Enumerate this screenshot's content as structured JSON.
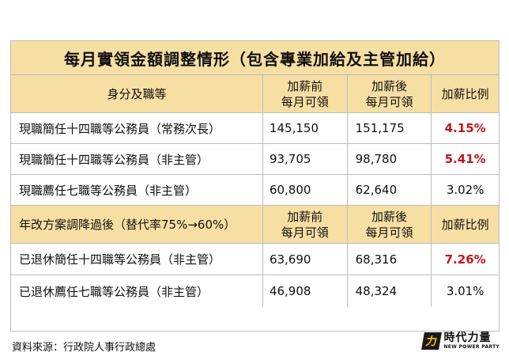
{
  "table": {
    "title": "每月實領金額調整情形（包含專業加給及主管加給）",
    "header1": {
      "identity": "身分及職等",
      "before_l1": "加薪前",
      "before_l2": "每月可領",
      "after_l1": "加薪後",
      "after_l2": "每月可領",
      "ratio": "加薪比例"
    },
    "rows_current": [
      {
        "identity": "現職簡任十四職等公務員（常務次長）",
        "before": "145,150",
        "after": "151,175",
        "ratio": "4.15%"
      },
      {
        "identity": "現職簡任十四職等公務員（非主管）",
        "before": "93,705",
        "after": "98,780",
        "ratio": "5.41%"
      },
      {
        "identity": "現職薦任七職等公務員（非主管）",
        "before": "60,800",
        "after": "62,640",
        "ratio": "3.02%"
      }
    ],
    "header2": {
      "identity": "年改方案調降過後（替代率75%→60%）",
      "before_l1": "加薪前",
      "before_l2": "每月可領",
      "after_l1": "加薪後",
      "after_l2": "每月可領",
      "ratio": "加薪比例"
    },
    "rows_retired": [
      {
        "identity": "已退休簡任十四職等公務員（非主管）",
        "before": "63,690",
        "after": "68,316",
        "ratio": "7.26%"
      },
      {
        "identity": "已退休薦任七職等公務員（非主管）",
        "before": "46,908",
        "after": "48,324",
        "ratio": "3.01%"
      }
    ]
  },
  "footer": {
    "source": "資料來源：行政院人事行政總處"
  },
  "logo": {
    "mark": "力",
    "name_cn": "時代力量",
    "name_en": "NEW POWER PARTY"
  },
  "colors": {
    "header_bg": "#f7dfa4",
    "highlight": "#c0161b"
  }
}
